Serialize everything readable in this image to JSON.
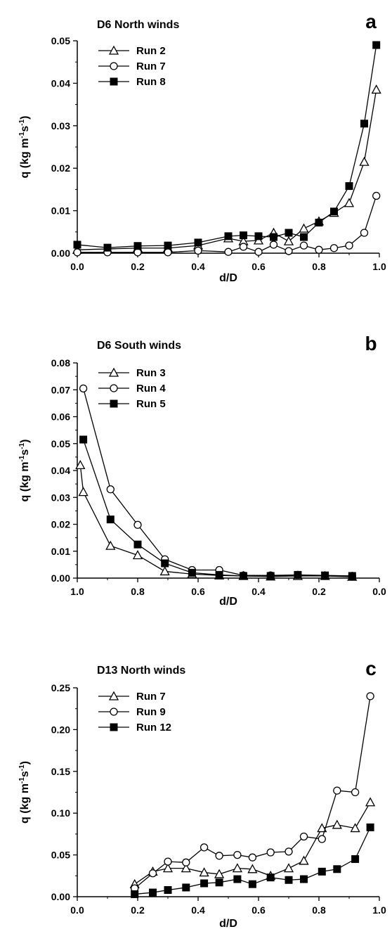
{
  "chart_data": [
    {
      "type": "line",
      "panel_label": "a",
      "title": "D6 North winds",
      "xlabel": "d/D",
      "ylabel": "q (kg m-1s-1)",
      "ylabel_parts": {
        "pre": "q (kg m",
        "sup1": "-1",
        "mid": "s",
        "sup2": "-1",
        "post": ")"
      },
      "xlim": [
        0,
        1
      ],
      "ylim": [
        0,
        0.05
      ],
      "x_reversed": false,
      "xticks": [
        0.0,
        0.2,
        0.4,
        0.6,
        0.8,
        1.0
      ],
      "xtick_labels": [
        "0.0",
        "0.2",
        "0.4",
        "0.6",
        "0.8",
        "1.0"
      ],
      "yticks": [
        0,
        0.01,
        0.02,
        0.03,
        0.04,
        0.05
      ],
      "ytick_labels": [
        "0.00",
        "0.01",
        "0.02",
        "0.03",
        "0.04",
        "0.05"
      ],
      "legend_position": "top-left",
      "series": [
        {
          "name": "Run 2",
          "marker": "triangle-open",
          "x": [
            0.0,
            0.1,
            0.2,
            0.3,
            0.4,
            0.5,
            0.55,
            0.6,
            0.65,
            0.7,
            0.75,
            0.8,
            0.85,
            0.9,
            0.95,
            0.99
          ],
          "y": [
            0.0008,
            0.001,
            0.0012,
            0.0012,
            0.0018,
            0.0035,
            0.0028,
            0.003,
            0.0048,
            0.0028,
            0.0058,
            0.0075,
            0.0095,
            0.0118,
            0.0215,
            0.0385
          ]
        },
        {
          "name": "Run 7",
          "marker": "circle-open",
          "x": [
            0.0,
            0.1,
            0.2,
            0.3,
            0.4,
            0.5,
            0.55,
            0.6,
            0.65,
            0.7,
            0.75,
            0.8,
            0.85,
            0.9,
            0.95,
            0.99
          ],
          "y": [
            0.0002,
            0.0002,
            0.0002,
            0.0002,
            0.0006,
            0.0003,
            0.0015,
            0.0003,
            0.002,
            0.0005,
            0.0018,
            0.0008,
            0.0012,
            0.0018,
            0.0048,
            0.0135
          ]
        },
        {
          "name": "Run 8",
          "marker": "square-filled",
          "x": [
            0.0,
            0.1,
            0.2,
            0.3,
            0.4,
            0.5,
            0.55,
            0.6,
            0.65,
            0.7,
            0.75,
            0.8,
            0.85,
            0.9,
            0.95,
            0.99
          ],
          "y": [
            0.002,
            0.0013,
            0.0017,
            0.0018,
            0.0025,
            0.004,
            0.0042,
            0.004,
            0.0038,
            0.0048,
            0.0038,
            0.0072,
            0.0098,
            0.0158,
            0.0305,
            0.049
          ]
        }
      ]
    },
    {
      "type": "line",
      "panel_label": "b",
      "title": "D6 South winds",
      "xlabel": "d/D",
      "ylabel": "q (kg m-1s-1)",
      "ylabel_parts": {
        "pre": "q (kg m",
        "sup1": "-1",
        "mid": "s",
        "sup2": "-1",
        "post": ")"
      },
      "xlim": [
        1,
        0
      ],
      "ylim": [
        0,
        0.08
      ],
      "x_reversed": true,
      "xticks": [
        1.0,
        0.8,
        0.6,
        0.4,
        0.2,
        0.0
      ],
      "xtick_labels": [
        "1.0",
        "0.8",
        "0.6",
        "0.4",
        "0.2",
        "0.0"
      ],
      "yticks": [
        0,
        0.01,
        0.02,
        0.03,
        0.04,
        0.05,
        0.06,
        0.07,
        0.08
      ],
      "ytick_labels": [
        "0.00",
        "0.01",
        "0.02",
        "0.03",
        "0.04",
        "0.05",
        "0.06",
        "0.07",
        "0.08"
      ],
      "legend_position": "top-left",
      "series": [
        {
          "name": "Run 3",
          "marker": "triangle-open",
          "x": [
            0.99,
            0.98,
            0.89,
            0.8,
            0.71,
            0.62,
            0.53,
            0.45,
            0.36,
            0.27,
            0.18,
            0.09
          ],
          "y": [
            0.042,
            0.032,
            0.012,
            0.0085,
            0.0025,
            0.0015,
            0.001,
            0.0008,
            0.0006,
            0.0008,
            0.0008,
            0.0005
          ]
        },
        {
          "name": "Run 4",
          "marker": "circle-open",
          "x": [
            0.98,
            0.89,
            0.8,
            0.71,
            0.62,
            0.53,
            0.45,
            0.36,
            0.27,
            0.18,
            0.09
          ],
          "y": [
            0.0705,
            0.033,
            0.0198,
            0.007,
            0.003,
            0.003,
            0.001,
            0.001,
            0.0012,
            0.0008,
            0.0008
          ]
        },
        {
          "name": "Run 5",
          "marker": "square-filled",
          "x": [
            0.98,
            0.89,
            0.8,
            0.71,
            0.62,
            0.53,
            0.45,
            0.36,
            0.27,
            0.18,
            0.09
          ],
          "y": [
            0.0515,
            0.0218,
            0.0125,
            0.0055,
            0.002,
            0.0012,
            0.0008,
            0.0008,
            0.0012,
            0.001,
            0.0008
          ]
        }
      ]
    },
    {
      "type": "line",
      "panel_label": "c",
      "title": "D13 North winds",
      "xlabel": "d/D",
      "ylabel": "q (kg m-1s-1)",
      "ylabel_parts": {
        "pre": "q (kg m",
        "sup1": "-1",
        "mid": "s",
        "sup2": "-1",
        "post": ")"
      },
      "xlim": [
        0,
        1
      ],
      "ylim": [
        0,
        0.25
      ],
      "x_reversed": false,
      "xticks": [
        0.0,
        0.2,
        0.4,
        0.6,
        0.8,
        1.0
      ],
      "xtick_labels": [
        "0.0",
        "0.2",
        "0.4",
        "0.6",
        "0.8",
        "1.0"
      ],
      "yticks": [
        0,
        0.05,
        0.1,
        0.15,
        0.2,
        0.25
      ],
      "ytick_labels": [
        "0.00",
        "0.05",
        "0.10",
        "0.15",
        "0.20",
        "0.25"
      ],
      "legend_position": "top-left",
      "series": [
        {
          "name": "Run 7",
          "marker": "triangle-open",
          "x": [
            0.19,
            0.25,
            0.3,
            0.36,
            0.42,
            0.47,
            0.53,
            0.58,
            0.64,
            0.7,
            0.75,
            0.81,
            0.86,
            0.92,
            0.97
          ],
          "y": [
            0.015,
            0.03,
            0.034,
            0.034,
            0.029,
            0.027,
            0.034,
            0.033,
            0.025,
            0.034,
            0.043,
            0.082,
            0.086,
            0.082,
            0.113
          ]
        },
        {
          "name": "Run 9",
          "marker": "circle-open",
          "x": [
            0.19,
            0.25,
            0.3,
            0.36,
            0.42,
            0.47,
            0.53,
            0.58,
            0.64,
            0.7,
            0.75,
            0.81,
            0.86,
            0.92,
            0.97
          ],
          "y": [
            0.01,
            0.028,
            0.042,
            0.041,
            0.059,
            0.049,
            0.05,
            0.047,
            0.053,
            0.054,
            0.072,
            0.069,
            0.127,
            0.125,
            0.24
          ]
        },
        {
          "name": "Run 12",
          "marker": "square-filled",
          "x": [
            0.19,
            0.25,
            0.3,
            0.36,
            0.42,
            0.47,
            0.53,
            0.58,
            0.64,
            0.7,
            0.75,
            0.81,
            0.86,
            0.92,
            0.97
          ],
          "y": [
            0.003,
            0.005,
            0.008,
            0.011,
            0.016,
            0.017,
            0.021,
            0.015,
            0.023,
            0.02,
            0.021,
            0.03,
            0.033,
            0.045,
            0.083
          ]
        }
      ]
    }
  ]
}
